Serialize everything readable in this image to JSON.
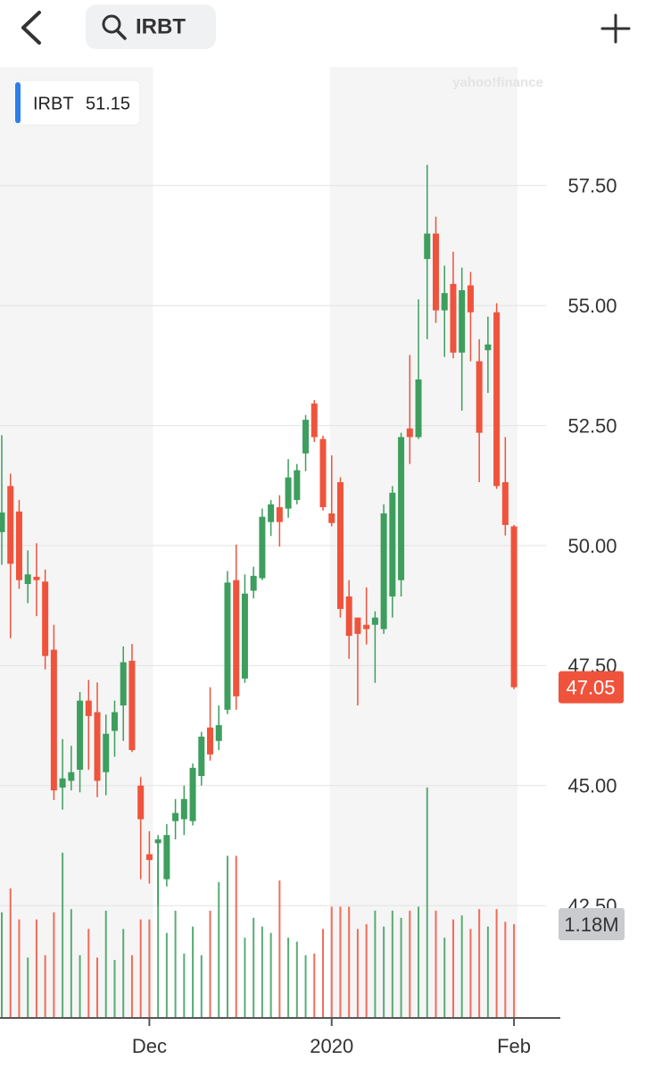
{
  "search_query": "IRBT",
  "watermark": "yahoo!finance",
  "chart_data": {
    "type": "candlestick",
    "legend_name": "IRBT",
    "legend_value": 51.15,
    "categories": [
      null,
      null,
      null,
      null,
      null,
      null,
      null,
      null,
      null,
      null,
      null,
      null,
      null,
      null,
      null,
      null,
      null,
      "Dec",
      null,
      null,
      null,
      null,
      null,
      null,
      null,
      null,
      null,
      null,
      null,
      null,
      null,
      null,
      null,
      null,
      null,
      null,
      null,
      null,
      "2020",
      null,
      null,
      null,
      null,
      null,
      null,
      null,
      null,
      null,
      null,
      null,
      null,
      null,
      null,
      null,
      null,
      null,
      null,
      null,
      null,
      "Feb"
    ],
    "open": [
      50.28,
      51.24,
      50.71,
      49.2,
      49.35,
      49.25,
      47.83,
      44.96,
      45.1,
      45.33,
      46.77,
      46.53,
      45.28,
      46.14,
      46.67,
      47.6,
      45.0,
      43.57,
      43.8,
      43.05,
      44.26,
      44.3,
      44.26,
      45.2,
      46.21,
      45.93,
      46.58,
      49.28,
      47.23,
      49.06,
      49.32,
      50.49,
      50.8,
      50.77,
      50.95,
      51.92,
      52.96,
      52.22,
      50.67,
      51.32,
      48.94,
      48.5,
      48.35,
      48.35,
      48.26,
      48.94,
      49.28,
      52.44,
      52.26,
      55.97,
      56.5,
      54.9,
      55.45,
      54.02,
      55.42,
      53.84,
      54.07,
      54.86,
      51.32,
      50.4
    ],
    "high": [
      52.3,
      51.5,
      50.95,
      49.9,
      50.05,
      49.5,
      48.35,
      45.97,
      45.83,
      46.95,
      47.2,
      47.15,
      46.48,
      46.77,
      47.9,
      47.95,
      45.18,
      44.05,
      43.97,
      44.2,
      44.72,
      45.0,
      45.46,
      46.12,
      47.05,
      46.67,
      49.47,
      50.02,
      49.4,
      49.56,
      50.77,
      50.95,
      51.05,
      51.8,
      51.7,
      52.72,
      53.03,
      52.29,
      51.88,
      51.42,
      49.28,
      48.5,
      49.13,
      48.63,
      50.86,
      51.24,
      52.35,
      53.97,
      55.13,
      57.93,
      56.85,
      55.83,
      56.12,
      55.79,
      55.7,
      54.3,
      54.77,
      55.05,
      52.26,
      50.43
    ],
    "low": [
      49.6,
      48.07,
      49.1,
      48.8,
      48.53,
      47.42,
      44.7,
      44.5,
      44.9,
      44.86,
      45.33,
      44.76,
      44.8,
      45.6,
      45.93,
      45.7,
      43.05,
      42.96,
      42.5,
      42.9,
      43.88,
      43.97,
      44.17,
      45.0,
      45.52,
      45.74,
      46.49,
      46.58,
      47.14,
      48.9,
      49.28,
      50.2,
      49.98,
      50.58,
      50.86,
      51.55,
      52.16,
      50.73,
      50.4,
      48.5,
      47.64,
      46.67,
      47.94,
      47.14,
      48.16,
      48.5,
      48.94,
      51.7,
      52.22,
      54.3,
      54.64,
      53.93,
      53.9,
      52.81,
      53.84,
      51.32,
      53.18,
      51.18,
      50.21,
      47.01
    ],
    "close": [
      50.69,
      49.62,
      49.28,
      49.4,
      49.28,
      47.7,
      44.9,
      45.15,
      45.28,
      46.77,
      46.45,
      45.1,
      46.08,
      46.53,
      47.57,
      45.74,
      44.3,
      43.45,
      43.88,
      43.97,
      44.43,
      44.72,
      45.37,
      46.02,
      45.65,
      46.26,
      49.23,
      46.86,
      49.0,
      49.37,
      50.6,
      50.86,
      50.49,
      51.42,
      51.57,
      52.62,
      52.26,
      50.8,
      50.47,
      48.68,
      48.12,
      48.16,
      48.26,
      48.5,
      50.67,
      51.1,
      52.26,
      52.26,
      53.46,
      56.5,
      54.9,
      55.26,
      54.02,
      55.32,
      54.86,
      52.35,
      54.19,
      51.24,
      50.43,
      47.05
    ],
    "last_price_label": "47.05",
    "volume": [
      1330000,
      1630000,
      1240000,
      760000,
      1240000,
      790000,
      1330000,
      2080000,
      1370000,
      790000,
      1120000,
      760000,
      1350000,
      730000,
      1120000,
      790000,
      1240000,
      1240000,
      2250000,
      1070000,
      1350000,
      810000,
      1150000,
      790000,
      1350000,
      1710000,
      2040000,
      2040000,
      1010000,
      1260000,
      1150000,
      1070000,
      1730000,
      1010000,
      960000,
      790000,
      810000,
      1120000,
      1400000,
      1400000,
      1400000,
      1120000,
      1180000,
      1350000,
      1150000,
      1350000,
      1260000,
      1350000,
      1400000,
      2900000,
      1350000,
      1010000,
      1240000,
      1290000,
      1120000,
      1370000,
      1150000,
      1370000,
      1210000,
      1180000
    ],
    "last_volume_label": "1.18M",
    "vlim": [
      0,
      3000000
    ],
    "ylim": [
      40.16,
      59.97
    ],
    "yticks": [
      {
        "value": 42.5,
        "label": "42.50"
      },
      {
        "value": 45,
        "label": "45.00"
      },
      {
        "value": 47.5,
        "label": "47.50"
      },
      {
        "value": 50,
        "label": "50.00"
      },
      {
        "value": 52.5,
        "label": "52.50"
      },
      {
        "value": 55,
        "label": "55.00"
      },
      {
        "value": 57.5,
        "label": "57.50"
      }
    ],
    "grid": true,
    "up_color": "#3d9e5e",
    "down_color": "#f0533c"
  }
}
